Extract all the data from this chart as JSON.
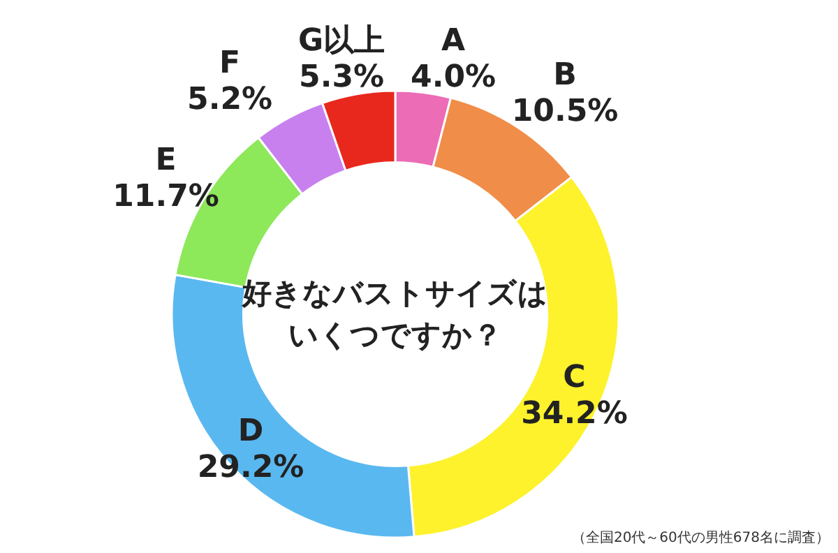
{
  "chart_data": {
    "type": "donut",
    "title": "好きなバストサイズはいくつですか？",
    "categories": [
      "A",
      "B",
      "C",
      "D",
      "E",
      "F",
      "G以上"
    ],
    "values": [
      4.0,
      10.5,
      34.2,
      29.2,
      11.7,
      5.2,
      5.3
    ],
    "value_labels": [
      "4.0%",
      "10.5%",
      "34.2%",
      "29.2%",
      "11.7%",
      "5.2%",
      "5.3%"
    ],
    "colors": [
      "#ec6cb6",
      "#f08d48",
      "#fdf22c",
      "#5ab8f0",
      "#8de85a",
      "#c880ef",
      "#e8281c"
    ],
    "annotations": [
      "（全国20代～60代の男性678名に調査）"
    ]
  }
}
